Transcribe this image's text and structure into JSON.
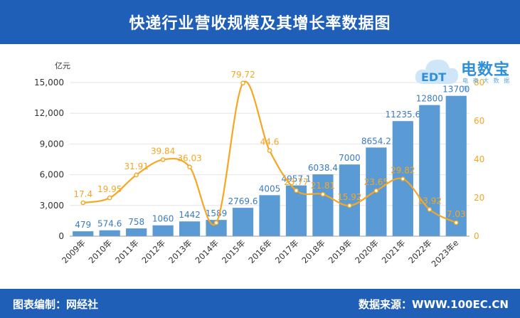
{
  "header": {
    "title": "快递行业营收规模及其增长率数据图"
  },
  "footer": {
    "source_left": "图表编制：网经社",
    "source_right": "数据来源：WWW.100EC.CN"
  },
  "logo": {
    "text": "电数宝",
    "subtext": "电 商 大 数 据 库",
    "badge": "EDT"
  },
  "colors": {
    "bar": "#5b9bd5",
    "line": "#f5a623",
    "header": "#1f5fb8",
    "grid": "#e6e6e6"
  },
  "chart_data": {
    "type": "bar",
    "categories": [
      "2009年",
      "2010年",
      "2011年",
      "2012年",
      "2013年",
      "2014年",
      "2015年",
      "2016年",
      "2017年",
      "2018年",
      "2019年",
      "2020年",
      "2021年",
      "2022年",
      "2023年e"
    ],
    "ylabel": "亿元",
    "ylim": [
      0,
      15000
    ],
    "yticks": [
      "0",
      "3,000",
      "6,000",
      "9,000",
      "12,000",
      "15,000"
    ],
    "y2lim": [
      0,
      80
    ],
    "y2ticks": [
      "0",
      "20",
      "40",
      "60",
      "80"
    ],
    "series": [
      {
        "kind": "bar",
        "axis": "left",
        "values": [
          479,
          574.6,
          758,
          1060,
          1442,
          1589,
          2769.6,
          4005,
          4957.1,
          6038.4,
          7000,
          8654.2,
          11235.6,
          12800,
          13700
        ],
        "labels": [
          "479",
          "574.6",
          "758",
          "1060",
          "1442",
          "1589",
          "2769.6",
          "4005",
          "4957.1",
          "6038.4",
          "7000",
          "8654.2",
          "11235.6",
          "12800",
          "13700"
        ]
      },
      {
        "kind": "line",
        "axis": "right",
        "values": [
          17.4,
          19.95,
          31.91,
          39.84,
          36.03,
          7,
          79.72,
          44.6,
          23.77,
          21.81,
          15.92,
          23.65,
          29.82,
          13.92,
          7.03
        ],
        "labels": [
          "17.4",
          "19.95",
          "31.91",
          "39.84",
          "36.03",
          "",
          "79.72",
          "44.6",
          "23.77",
          "21.81",
          "15.92",
          "23.65",
          "29.82",
          "13.92",
          "7.03"
        ]
      }
    ]
  }
}
